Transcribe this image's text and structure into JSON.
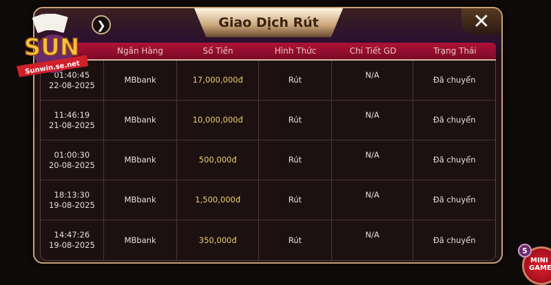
{
  "title": "Giao Dịch Rút",
  "logo": {
    "brand": "SUN",
    "url": "Sunwin.se.net"
  },
  "columns": [
    "",
    "Ngân Hàng",
    "Số Tiền",
    "Hình Thức",
    "Chi Tiết GD",
    "Trạng Thái"
  ],
  "rows": [
    {
      "time": "01:40:45",
      "date": "22-08-2025",
      "bank": "MBbank",
      "amount": "17,000,000đ",
      "method": "Rút",
      "detail": "N/A",
      "status": "Đã chuyển"
    },
    {
      "time": "11:46:19",
      "date": "21-08-2025",
      "bank": "MBbank",
      "amount": "10,000,000đ",
      "method": "Rút",
      "detail": "N/A",
      "status": "Đã chuyển"
    },
    {
      "time": "01:00:30",
      "date": "20-08-2025",
      "bank": "MBbank",
      "amount": "500,000đ",
      "method": "Rút",
      "detail": "N/A",
      "status": "Đã chuyển"
    },
    {
      "time": "18:13:30",
      "date": "19-08-2025",
      "bank": "MBbank",
      "amount": "1,500,000đ",
      "method": "Rút",
      "detail": "N/A",
      "status": "Đã chuyển"
    },
    {
      "time": "14:47:26",
      "date": "19-08-2025",
      "bank": "MBbank",
      "amount": "350,000đ",
      "method": "Rút",
      "detail": "N/A",
      "status": "Đã chuyển"
    }
  ],
  "mini_game": {
    "label1": "MINI",
    "label2": "GAME",
    "badge": "5"
  },
  "icons": {
    "close": "close-icon",
    "next": "chevron-right-icon"
  }
}
